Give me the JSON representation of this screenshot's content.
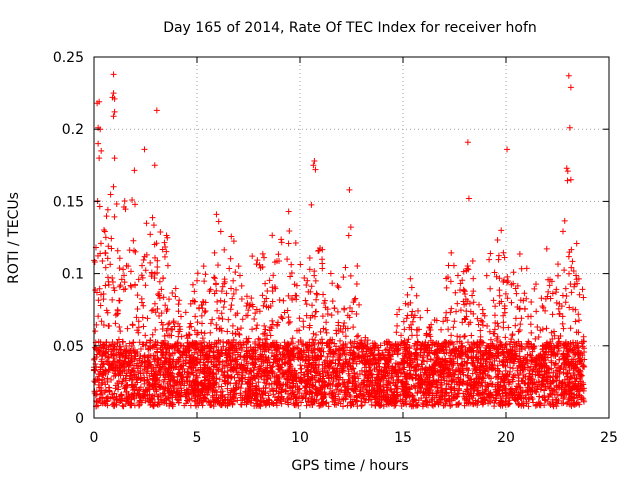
{
  "chart_data": {
    "type": "scatter",
    "title": "Day 165 of 2014, Rate Of TEC Index for receiver hofn",
    "xlabel": "GPS time / hours",
    "ylabel": "ROTI / TECUs",
    "xlim": [
      0,
      25
    ],
    "ylim": [
      0,
      0.25
    ],
    "x_ticks": [
      "0",
      "5",
      "10",
      "15",
      "20",
      "25"
    ],
    "y_ticks": [
      "0",
      "0.05",
      "0.1",
      "0.15",
      "0.2",
      "0.25"
    ],
    "x_tick_values": [
      0,
      5,
      10,
      15,
      20,
      25
    ],
    "y_tick_values": [
      0,
      0.05,
      0.1,
      0.15,
      0.2,
      0.25
    ],
    "grid": true,
    "grid_style": "dotted",
    "marker": "+",
    "marker_color": "#ff0000",
    "x_range_of_data": [
      0,
      23.8
    ],
    "series": [
      {
        "description_of_density": "dense cloud of ROTI points, mostly 0.01-0.06 TECUs",
        "envelope": [
          {
            "x": 0.0,
            "y": 0.16
          },
          {
            "x": 0.5,
            "y": 0.19
          },
          {
            "x": 1.0,
            "y": 0.17
          },
          {
            "x": 1.5,
            "y": 0.15
          },
          {
            "x": 2.0,
            "y": 0.18
          },
          {
            "x": 2.5,
            "y": 0.16
          },
          {
            "x": 3.0,
            "y": 0.16
          },
          {
            "x": 3.5,
            "y": 0.13
          },
          {
            "x": 4.0,
            "y": 0.09
          },
          {
            "x": 4.5,
            "y": 0.08
          },
          {
            "x": 5.0,
            "y": 0.12
          },
          {
            "x": 5.5,
            "y": 0.11
          },
          {
            "x": 6.0,
            "y": 0.15
          },
          {
            "x": 6.5,
            "y": 0.12
          },
          {
            "x": 7.0,
            "y": 0.15
          },
          {
            "x": 7.5,
            "y": 0.12
          },
          {
            "x": 8.0,
            "y": 0.11
          },
          {
            "x": 8.5,
            "y": 0.14
          },
          {
            "x": 9.0,
            "y": 0.12
          },
          {
            "x": 9.5,
            "y": 0.16
          },
          {
            "x": 10.0,
            "y": 0.12
          },
          {
            "x": 10.5,
            "y": 0.15
          },
          {
            "x": 11.0,
            "y": 0.13
          },
          {
            "x": 11.5,
            "y": 0.1
          },
          {
            "x": 12.0,
            "y": 0.1
          },
          {
            "x": 12.5,
            "y": 0.15
          },
          {
            "x": 13.0,
            "y": 0.08
          },
          {
            "x": 13.5,
            "y": 0.06
          },
          {
            "x": 14.0,
            "y": 0.05
          },
          {
            "x": 14.5,
            "y": 0.06
          },
          {
            "x": 15.0,
            "y": 0.09
          },
          {
            "x": 15.5,
            "y": 0.1
          },
          {
            "x": 16.0,
            "y": 0.08
          },
          {
            "x": 16.5,
            "y": 0.07
          },
          {
            "x": 17.0,
            "y": 0.09
          },
          {
            "x": 17.5,
            "y": 0.13
          },
          {
            "x": 18.0,
            "y": 0.15
          },
          {
            "x": 18.5,
            "y": 0.11
          },
          {
            "x": 19.0,
            "y": 0.11
          },
          {
            "x": 19.5,
            "y": 0.12
          },
          {
            "x": 20.0,
            "y": 0.14
          },
          {
            "x": 20.5,
            "y": 0.12
          },
          {
            "x": 21.0,
            "y": 0.11
          },
          {
            "x": 21.5,
            "y": 0.1
          },
          {
            "x": 22.0,
            "y": 0.12
          },
          {
            "x": 22.5,
            "y": 0.11
          },
          {
            "x": 23.0,
            "y": 0.17
          },
          {
            "x": 23.5,
            "y": 0.13
          },
          {
            "x": 23.8,
            "y": 0.08
          }
        ],
        "outliers": [
          {
            "x": 0.95,
            "y": 0.238
          },
          {
            "x": 0.95,
            "y": 0.225
          },
          {
            "x": 0.9,
            "y": 0.222
          },
          {
            "x": 1.0,
            "y": 0.221
          },
          {
            "x": 1.0,
            "y": 0.212
          },
          {
            "x": 0.95,
            "y": 0.209
          },
          {
            "x": 0.15,
            "y": 0.218
          },
          {
            "x": 0.25,
            "y": 0.219
          },
          {
            "x": 0.2,
            "y": 0.201
          },
          {
            "x": 0.3,
            "y": 0.2
          },
          {
            "x": 0.2,
            "y": 0.19
          },
          {
            "x": 0.35,
            "y": 0.185
          },
          {
            "x": 0.25,
            "y": 0.18
          },
          {
            "x": 3.05,
            "y": 0.213
          },
          {
            "x": 2.95,
            "y": 0.175
          },
          {
            "x": 1.0,
            "y": 0.18
          },
          {
            "x": 2.45,
            "y": 0.186
          },
          {
            "x": 10.7,
            "y": 0.178
          },
          {
            "x": 10.65,
            "y": 0.175
          },
          {
            "x": 10.75,
            "y": 0.172
          },
          {
            "x": 12.4,
            "y": 0.158
          },
          {
            "x": 18.15,
            "y": 0.191
          },
          {
            "x": 20.05,
            "y": 0.186
          },
          {
            "x": 18.2,
            "y": 0.152
          },
          {
            "x": 23.05,
            "y": 0.237
          },
          {
            "x": 23.15,
            "y": 0.229
          },
          {
            "x": 23.1,
            "y": 0.201
          },
          {
            "x": 22.95,
            "y": 0.173
          },
          {
            "x": 23.0,
            "y": 0.171
          },
          {
            "x": 23.15,
            "y": 0.165
          }
        ]
      }
    ]
  }
}
